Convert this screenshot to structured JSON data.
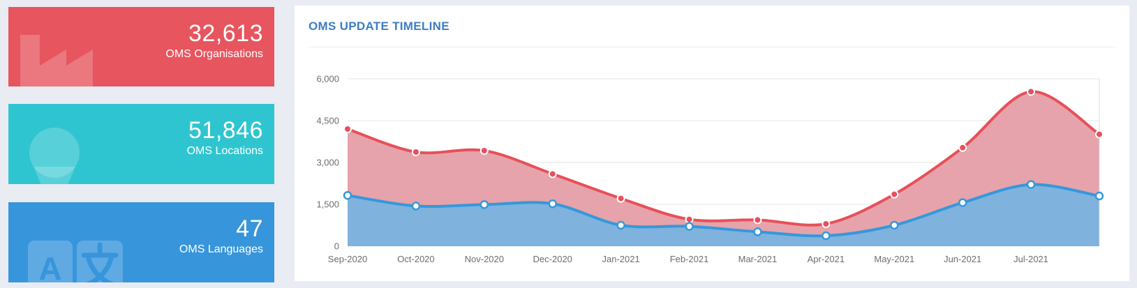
{
  "page": {
    "background_color": "#e9ecf3"
  },
  "stat_cards": [
    {
      "value": "32,613",
      "label": "OMS Organisations",
      "color": "#e7555f",
      "icon": "factory-icon"
    },
    {
      "value": "51,846",
      "label": "OMS Locations",
      "color": "#2fc5d0",
      "icon": "map-marker-icon"
    },
    {
      "value": "47",
      "label": "OMS Languages",
      "color": "#3795dc",
      "icon": "translate-icon"
    }
  ],
  "panel": {
    "title": "OMS UPDATE TIMELINE",
    "title_color": "#3e7dc1"
  },
  "chart_data": {
    "type": "area",
    "title": "OMS UPDATE TIMELINE",
    "categories": [
      "Sep-2020",
      "Oct-2020",
      "Nov-2020",
      "Dec-2020",
      "Jan-2021",
      "Feb-2021",
      "Mar-2021",
      "Apr-2021",
      "May-2021",
      "Jun-2021",
      "Jul-2021",
      ""
    ],
    "series": [
      {
        "name": "series-red",
        "line_color": "#e7505a",
        "fill_color": "#e6a3ab",
        "point_style": "filled",
        "values": [
          4200,
          3375,
          3425,
          2590,
          1710,
          960,
          940,
          800,
          1860,
          3530,
          5540,
          4010
        ]
      },
      {
        "name": "series-blue",
        "line_color": "#3598dc",
        "fill_color": "#7fb2dc",
        "point_style": "hollow",
        "values": [
          1820,
          1440,
          1490,
          1520,
          750,
          710,
          515,
          375,
          750,
          1560,
          2210,
          1800
        ]
      }
    ],
    "y_ticks": [
      0,
      1500,
      3000,
      4500,
      6000
    ],
    "ylim": [
      0,
      6000
    ],
    "grid": true,
    "legend": false,
    "grid_color": "#e4e4e4",
    "axis_text_color": "#6a6d70"
  }
}
